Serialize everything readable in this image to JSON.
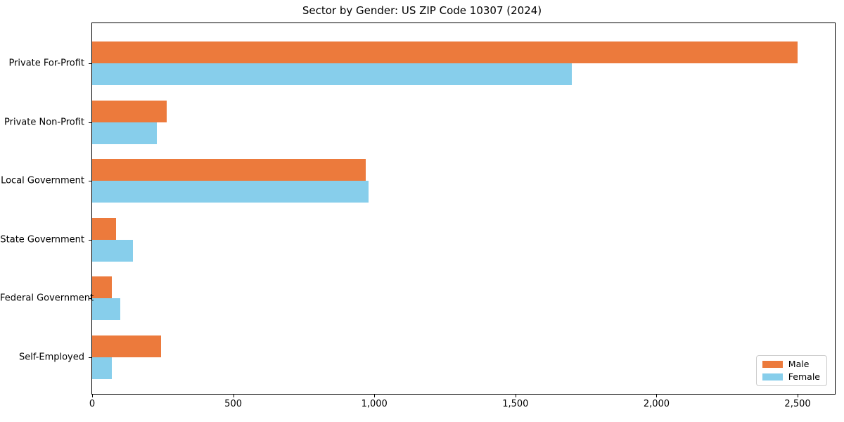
{
  "title": "Sector by Gender: US ZIP Code 10307 (2024)",
  "chart_data": {
    "type": "bar",
    "orientation": "horizontal",
    "title": "Sector by Gender: US ZIP Code 10307 (2024)",
    "categories": [
      "Private For-Profit",
      "Private Non-Profit",
      "Local Government",
      "State Government",
      "Federal Government",
      "Self-Employed"
    ],
    "series": [
      {
        "name": "Male",
        "color": "#EC7A3C",
        "values": [
          2500,
          265,
          970,
          85,
          70,
          245
        ]
      },
      {
        "name": "Female",
        "color": "#87CEEB",
        "values": [
          1700,
          230,
          980,
          145,
          100,
          70
        ]
      }
    ],
    "xlabel": "",
    "ylabel": "",
    "xlim": [
      0,
      2632
    ],
    "xticks": [
      0,
      500,
      1000,
      1500,
      2000,
      2500
    ],
    "xtick_labels": [
      "0",
      "500",
      "1,000",
      "1,500",
      "2,000",
      "2,500"
    ],
    "legend": {
      "position": "lower right",
      "entries": [
        "Male",
        "Female"
      ]
    },
    "grid": false,
    "background": "#ffffff",
    "axis_color": "#000000",
    "legend_border_color": "#cccccc"
  }
}
